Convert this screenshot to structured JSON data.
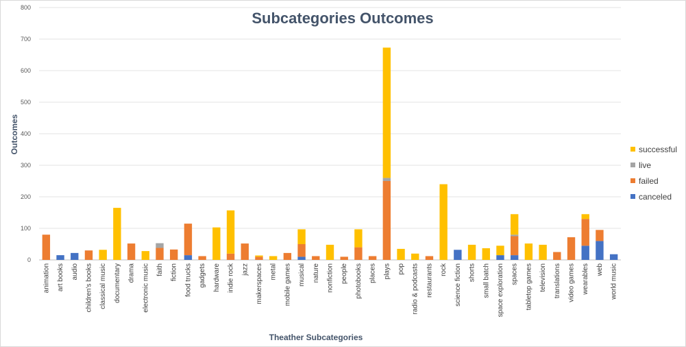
{
  "chart_data": {
    "type": "bar",
    "stacked": true,
    "title": "Subcategories Outcomes",
    "xlabel": "Theather Subcategories",
    "ylabel": "Outcomes",
    "ylim": [
      0,
      800
    ],
    "yticks": [
      0,
      100,
      200,
      300,
      400,
      500,
      600,
      700,
      800
    ],
    "grid": true,
    "legend_position": "right",
    "categories": [
      "animation",
      "art books",
      "audio",
      "children's books",
      "classical music",
      "documentary",
      "drama",
      "electronic music",
      "faith",
      "fiction",
      "food trucks",
      "gadgets",
      "hardware",
      "indie rock",
      "jazz",
      "makerspaces",
      "metal",
      "mobile games",
      "musical",
      "nature",
      "nonfiction",
      "people",
      "photobooks",
      "places",
      "plays",
      "pop",
      "radio & podcasts",
      "restaurants",
      "rock",
      "science fiction",
      "shorts",
      "small batch",
      "space exploration",
      "spaces",
      "tabletop games",
      "television",
      "translations",
      "video games",
      "wearables",
      "web",
      "world music"
    ],
    "series": [
      {
        "name": "canceled",
        "color": "#4472c4",
        "values": [
          0,
          15,
          22,
          0,
          0,
          0,
          0,
          0,
          0,
          0,
          15,
          0,
          0,
          0,
          0,
          0,
          0,
          0,
          10,
          0,
          0,
          0,
          0,
          0,
          0,
          0,
          0,
          0,
          0,
          32,
          0,
          0,
          15,
          15,
          0,
          0,
          0,
          0,
          45,
          60,
          18
        ]
      },
      {
        "name": "failed",
        "color": "#ed7d31",
        "values": [
          80,
          0,
          0,
          30,
          0,
          0,
          52,
          0,
          38,
          33,
          100,
          12,
          0,
          20,
          52,
          10,
          0,
          22,
          40,
          12,
          0,
          10,
          40,
          12,
          250,
          0,
          0,
          12,
          0,
          0,
          0,
          0,
          0,
          60,
          0,
          0,
          25,
          72,
          85,
          35,
          0
        ]
      },
      {
        "name": "live",
        "color": "#a5a5a5",
        "values": [
          0,
          0,
          0,
          0,
          0,
          0,
          0,
          0,
          15,
          0,
          0,
          0,
          0,
          0,
          0,
          0,
          0,
          0,
          0,
          0,
          0,
          0,
          0,
          0,
          10,
          0,
          0,
          0,
          0,
          0,
          0,
          0,
          0,
          5,
          0,
          0,
          0,
          0,
          0,
          0,
          0
        ]
      },
      {
        "name": "successful",
        "color": "#ffc000",
        "values": [
          0,
          0,
          0,
          0,
          32,
          165,
          0,
          28,
          0,
          0,
          0,
          0,
          103,
          137,
          0,
          4,
          12,
          0,
          47,
          0,
          48,
          0,
          57,
          0,
          413,
          35,
          20,
          0,
          240,
          0,
          48,
          37,
          30,
          65,
          52,
          48,
          0,
          0,
          15,
          0,
          0
        ]
      }
    ]
  }
}
